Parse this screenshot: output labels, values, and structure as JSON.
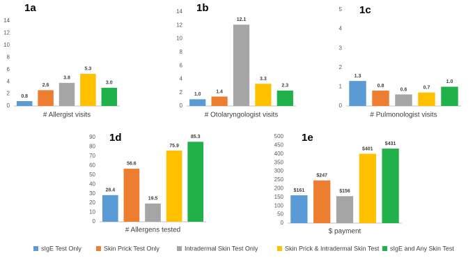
{
  "legend": [
    {
      "name": "sIgE Test Only",
      "color": "#5b9bd5"
    },
    {
      "name": "Skin Prick Test Only",
      "color": "#ed7d31"
    },
    {
      "name": "Intradermal Skin Test Only",
      "color": "#a5a5a5"
    },
    {
      "name": "Skin Prick & Intradermal Skin Test",
      "color": "#ffc000"
    },
    {
      "name": "sIgE and Any Skin Test",
      "color": "#21b14b"
    }
  ],
  "chart_data": [
    {
      "type": "bar",
      "title": "1a",
      "xlabel": "# Allergist visits",
      "values": [
        0.8,
        2.6,
        3.8,
        5.3,
        3.0
      ],
      "value_labels": [
        "0.8",
        "2.6",
        "3.8",
        "5.3",
        "3.0"
      ],
      "ylim": [
        0,
        14
      ],
      "yticks": [
        0,
        2,
        4,
        6,
        8,
        10,
        12,
        14
      ]
    },
    {
      "type": "bar",
      "title": "1b",
      "xlabel": "# Otolaryngologist visits",
      "values": [
        1.0,
        1.4,
        12.1,
        3.3,
        2.3
      ],
      "value_labels": [
        "1.0",
        "1.4",
        "12.1",
        "3.3",
        "2.3"
      ],
      "ylim": [
        0,
        14
      ],
      "yticks": [
        0,
        2,
        4,
        6,
        8,
        10,
        12,
        14
      ]
    },
    {
      "type": "bar",
      "title": "1c",
      "xlabel": "# Pulmonologist visits",
      "values": [
        1.3,
        0.8,
        0.6,
        0.7,
        1.0
      ],
      "value_labels": [
        "1.3",
        "0.8",
        "0.6",
        "0.7",
        "1.0"
      ],
      "ylim": [
        0,
        5
      ],
      "yticks": [
        0,
        1,
        2,
        3,
        4,
        5
      ]
    },
    {
      "type": "bar",
      "title": "1d",
      "xlabel": "# Allergens tested",
      "values": [
        28.4,
        56.6,
        19.5,
        75.9,
        85.3
      ],
      "value_labels": [
        "28.4",
        "56.6",
        "19.5",
        "75.9",
        "85.3"
      ],
      "ylim": [
        0,
        90
      ],
      "yticks": [
        0,
        10,
        20,
        30,
        40,
        50,
        60,
        70,
        80,
        90
      ]
    },
    {
      "type": "bar",
      "title": "1e",
      "xlabel": "$ payment",
      "values": [
        161,
        247,
        156,
        401,
        431
      ],
      "value_labels": [
        "$161",
        "$247",
        "$156",
        "$401",
        "$431"
      ],
      "ylim": [
        0,
        500
      ],
      "yticks": [
        0,
        50,
        100,
        150,
        200,
        250,
        300,
        350,
        400,
        450,
        500
      ]
    }
  ]
}
